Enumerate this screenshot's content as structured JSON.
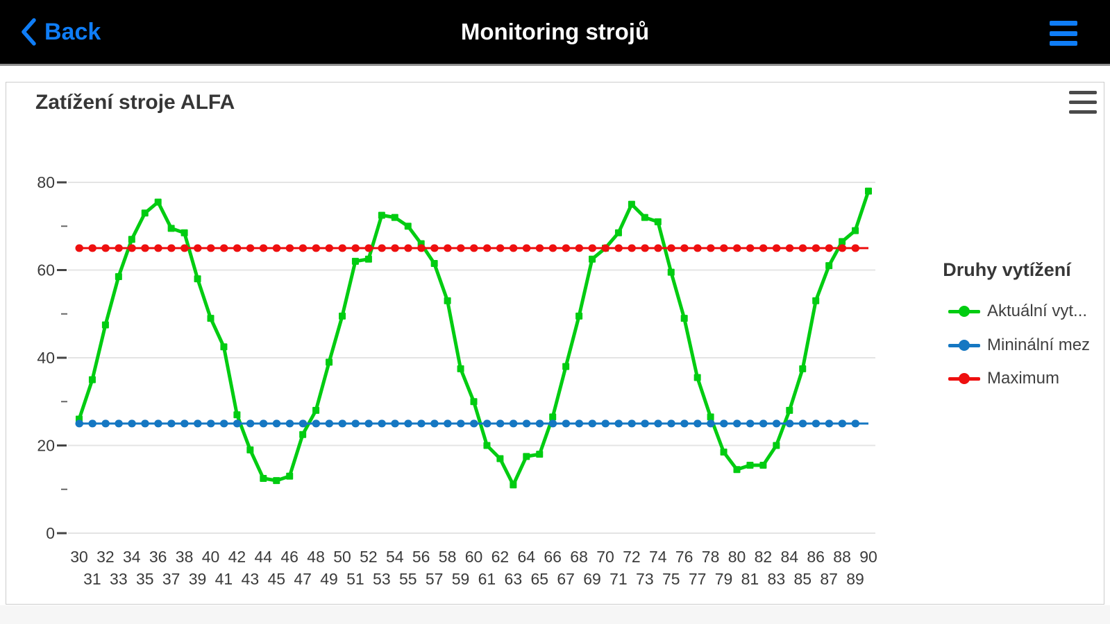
{
  "nav": {
    "back_label": "Back",
    "title": "Monitoring strojů"
  },
  "chart": {
    "title": "Zatížení stroje ALFA"
  },
  "legend": {
    "title": "Druhy vytížení",
    "items": [
      {
        "label": "Aktuální vyt...",
        "color": "#00cc11"
      },
      {
        "label": "Mininální mez",
        "color": "#1577c2"
      },
      {
        "label": "Maximum",
        "color": "#ee0f0f"
      }
    ]
  },
  "colors": {
    "accent": "#0f7df6",
    "nav_bg": "#000000",
    "nav_title": "#ffffff",
    "card_border": "#cccccc",
    "title_text": "#363636",
    "axis_text": "#3b3b3b",
    "grid": "#e4e4e4",
    "burger": "#4a4a4a"
  },
  "chart_data": {
    "type": "line",
    "title": "Zatížení stroje ALFA",
    "legend_title": "Druhy vytížení",
    "legend_position": "right",
    "grid": "horizontal-only",
    "xlabel": "",
    "ylabel": "",
    "xlim": [
      30,
      90
    ],
    "ylim": [
      0,
      80
    ],
    "yticks_major": [
      0,
      20,
      40,
      60,
      80
    ],
    "yticks_minor": [
      10,
      30,
      50,
      70
    ],
    "x": [
      30,
      31,
      32,
      33,
      34,
      35,
      36,
      37,
      38,
      39,
      40,
      41,
      42,
      43,
      44,
      45,
      46,
      47,
      48,
      49,
      50,
      51,
      52,
      53,
      54,
      55,
      56,
      57,
      58,
      59,
      60,
      61,
      62,
      63,
      64,
      65,
      66,
      67,
      68,
      69,
      70,
      71,
      72,
      73,
      74,
      75,
      76,
      77,
      78,
      79,
      80,
      81,
      82,
      83,
      84,
      85,
      86,
      87,
      88,
      89,
      90
    ],
    "series": [
      {
        "name": "Aktuální vyt...",
        "color": "#00cc11",
        "style": "solid",
        "marker": "square",
        "values": [
          26,
          35,
          47.5,
          58.5,
          67,
          73,
          75.5,
          69.5,
          68.5,
          58,
          49,
          42.5,
          27,
          19,
          12.5,
          12,
          13,
          22.5,
          28,
          39,
          49.5,
          62,
          62.5,
          72.5,
          72,
          70,
          66,
          61.5,
          53,
          37.5,
          30,
          20,
          17,
          11,
          17.5,
          18,
          26.5,
          38,
          49.5,
          62.5,
          65,
          68.5,
          75,
          72,
          71,
          59.5,
          49,
          35.5,
          26.5,
          18.5,
          14.5,
          15.5,
          15.5,
          20,
          28,
          37.5,
          53,
          61,
          66.5,
          69,
          78
        ]
      },
      {
        "name": "Mininální mez",
        "color": "#1577c2",
        "style": "dotted",
        "constant": 25
      },
      {
        "name": "Maximum",
        "color": "#ee0f0f",
        "style": "dotted",
        "constant": 65
      }
    ]
  }
}
